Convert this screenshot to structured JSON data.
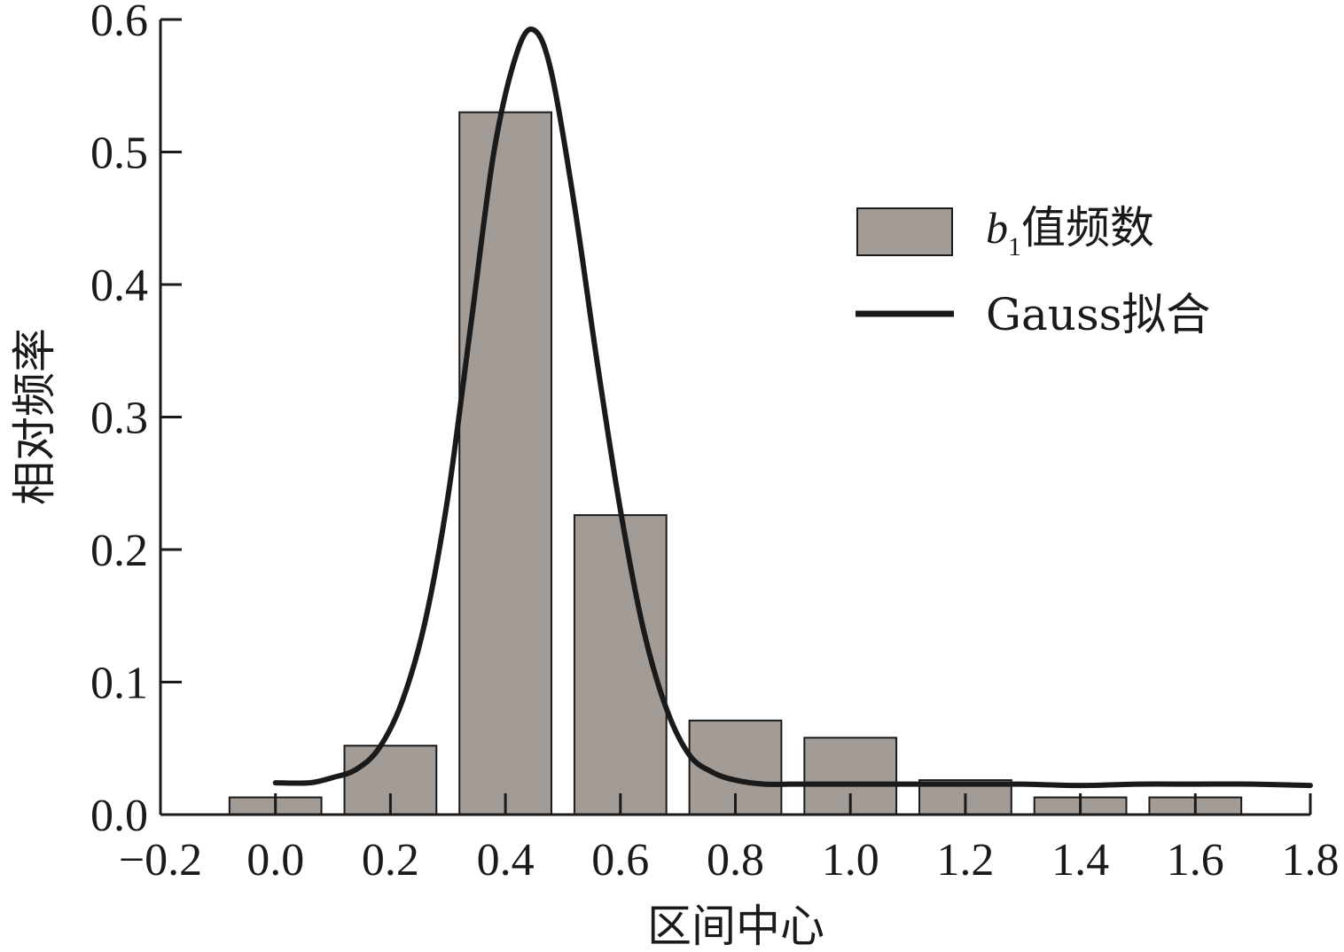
{
  "chart_data": {
    "type": "bar",
    "xlabel": "区间中心",
    "ylabel": "相对频率",
    "xlim": [
      -0.2,
      1.8
    ],
    "ylim": [
      0.0,
      0.6
    ],
    "xticks": [
      "−0.2",
      "0.0",
      "0.2",
      "0.4",
      "0.6",
      "0.8",
      "1.0",
      "1.2",
      "1.4",
      "1.6",
      "1.8"
    ],
    "yticks": [
      "0.0",
      "0.1",
      "0.2",
      "0.3",
      "0.4",
      "0.5",
      "0.6"
    ],
    "bar_width": 0.16,
    "bar_color": "#a39b96",
    "curve_color": "#1a1a1a",
    "categories": [
      0.0,
      0.2,
      0.4,
      0.6,
      0.8,
      1.0,
      1.2,
      1.4,
      1.6
    ],
    "series": [
      {
        "name": "b1值频数",
        "type": "bar",
        "values": [
          0.013,
          0.052,
          0.53,
          0.226,
          0.071,
          0.058,
          0.026,
          0.013,
          0.013
        ]
      },
      {
        "name": "Gauss拟合",
        "type": "line",
        "x": [
          0.0,
          0.06,
          0.1,
          0.14,
          0.18,
          0.22,
          0.26,
          0.3,
          0.34,
          0.38,
          0.42,
          0.45,
          0.48,
          0.52,
          0.56,
          0.6,
          0.64,
          0.68,
          0.72,
          0.76,
          0.8,
          0.85,
          0.9,
          1.0,
          1.1,
          1.2,
          1.3,
          1.4,
          1.5,
          1.6,
          1.7,
          1.8
        ],
        "y": [
          0.024,
          0.024,
          0.028,
          0.034,
          0.05,
          0.085,
          0.145,
          0.24,
          0.37,
          0.5,
          0.575,
          0.592,
          0.56,
          0.46,
          0.34,
          0.23,
          0.14,
          0.08,
          0.045,
          0.032,
          0.026,
          0.023,
          0.023,
          0.023,
          0.023,
          0.023,
          0.023,
          0.022,
          0.023,
          0.023,
          0.023,
          0.022
        ]
      }
    ],
    "legend": {
      "position": "top-right",
      "bar_label_italic": "b",
      "bar_label_sub": "1",
      "bar_label_rest": "值频数",
      "line_label": "Gauss拟合"
    },
    "grid": false
  }
}
